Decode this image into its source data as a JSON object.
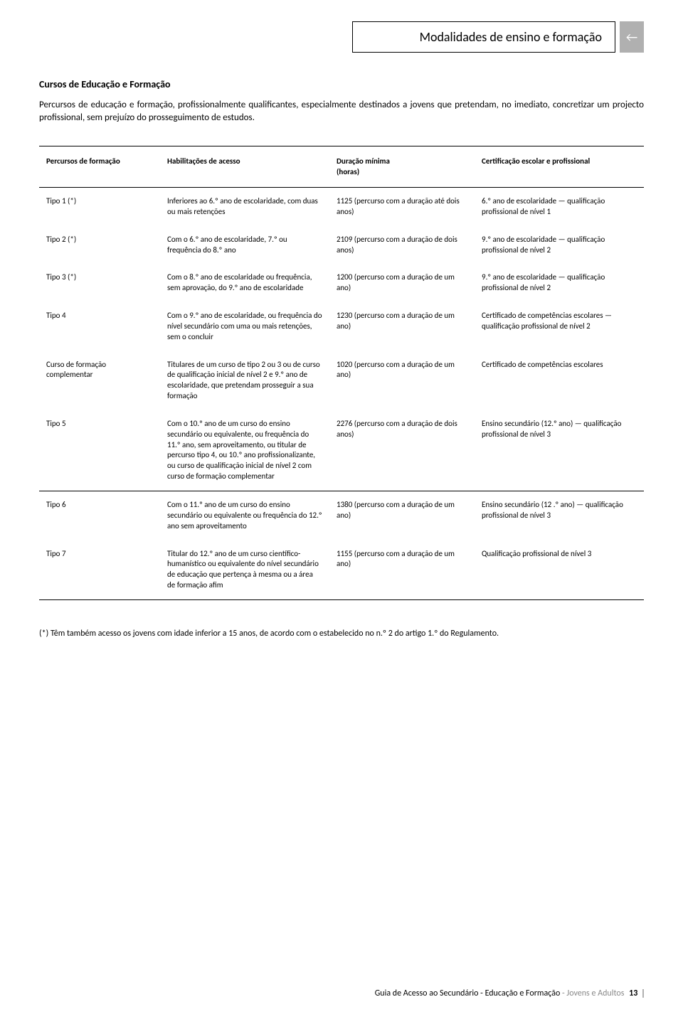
{
  "header": {
    "tab_title": "Modalidades de ensino e formação",
    "arrow_glyph": "←"
  },
  "section_heading": "Cursos de Educação e Formação",
  "intro": "Percursos de educação e formação, profissionalmente qualificantes, especialmente destinados a jovens que pretendam, no imediato, concretizar um projecto profissional, sem prejuízo do prosseguimento de estudos.",
  "table": {
    "headers": {
      "c1": "Percursos de formação",
      "c2": "Habilitações de acesso",
      "c3": "Duração mínima\n(horas)",
      "c4": "Certificação escolar e profissional"
    },
    "groups": [
      {
        "rows": [
          {
            "c1": "Tipo 1 (*)",
            "c2": "Inferiores ao 6.º ano de escolaridade, com duas ou mais retenções",
            "c3": "1125 (percurso com a duração até dois anos)",
            "c4": "6.º ano de escolaridade — qualificação profissional de nível 1"
          },
          {
            "c1": "Tipo 2 (*)",
            "c2": "Com o 6.º ano de escolaridade, 7.º ou frequência do 8.º ano",
            "c3": "2109 (percurso com a duração de dois anos)",
            "c4": "9.º ano de escolaridade — qualificação profissional de nível 2"
          },
          {
            "c1": "Tipo 3 (*)",
            "c2": "Com o 8.º ano de escolaridade ou frequência, sem aprovação, do 9.º ano de escolaridade",
            "c3": "1200 (percurso com a duração de um ano)",
            "c4": "9.º ano de escolaridade — qualificação profissional de nível 2"
          },
          {
            "c1": "Tipo 4",
            "c2": "Com o 9.º ano de escolaridade, ou frequência do nível secundário com uma ou mais retenções, sem o concluir",
            "c3": "1230 (percurso com a duração de um ano)",
            "c4": "Certificado de competências escolares — qualificação profissional de nível 2"
          },
          {
            "c1": "Curso de formação complementar",
            "c2": "Titulares de um curso de tipo 2 ou 3 ou de curso de qualificação inicial de nível 2 e 9.º ano de escolaridade, que pretendam prosseguir a sua formação",
            "c3": "1020 (percurso com a duração de um ano)",
            "c4": "Certificado de competências escolares"
          },
          {
            "c1": "Tipo 5",
            "c2": "Com o 10.º ano de um curso do ensino secundário ou equivalente, ou frequência do 11.º ano, sem aproveitamento, ou titular de percurso tipo 4, ou 10.º ano profissionalizante, ou curso de qualificação inicial de nível 2 com curso de formação complementar",
            "c3": "2276 (percurso com a duração de dois anos)",
            "c4": "Ensino secundário (12.º ano) — qualificação profissional de nível 3"
          }
        ]
      },
      {
        "rows": [
          {
            "c1": "Tipo 6",
            "c2": "Com o 11.º ano de um curso do ensino secundário ou equivalente ou frequência do 12.º ano sem aproveitamento",
            "c3": "1380 (percurso com a duração de um ano)",
            "c4": "Ensino secundário (12 .º ano) — qualificação profissional de nível 3"
          },
          {
            "c1": "Tipo 7",
            "c2": "Titular do 12.º ano de um curso científico-humanístico ou equivalente do nível secundário de educação que pertença à mesma ou a área de formação afim",
            "c3": "1155 (percurso com a duração de um ano)",
            "c4": "Qualificação profissional de nível 3"
          }
        ]
      }
    ]
  },
  "footnote": "(*) Têm também acesso os jovens com idade inferior a 15 anos, de acordo com o estabelecido no n.º 2 do artigo 1.º do Regulamento.",
  "footer": {
    "part1": "Guia de Acesso ao Secundário - Educação e Formação",
    "part2": " - Jovens e Adultos",
    "page": "13"
  }
}
